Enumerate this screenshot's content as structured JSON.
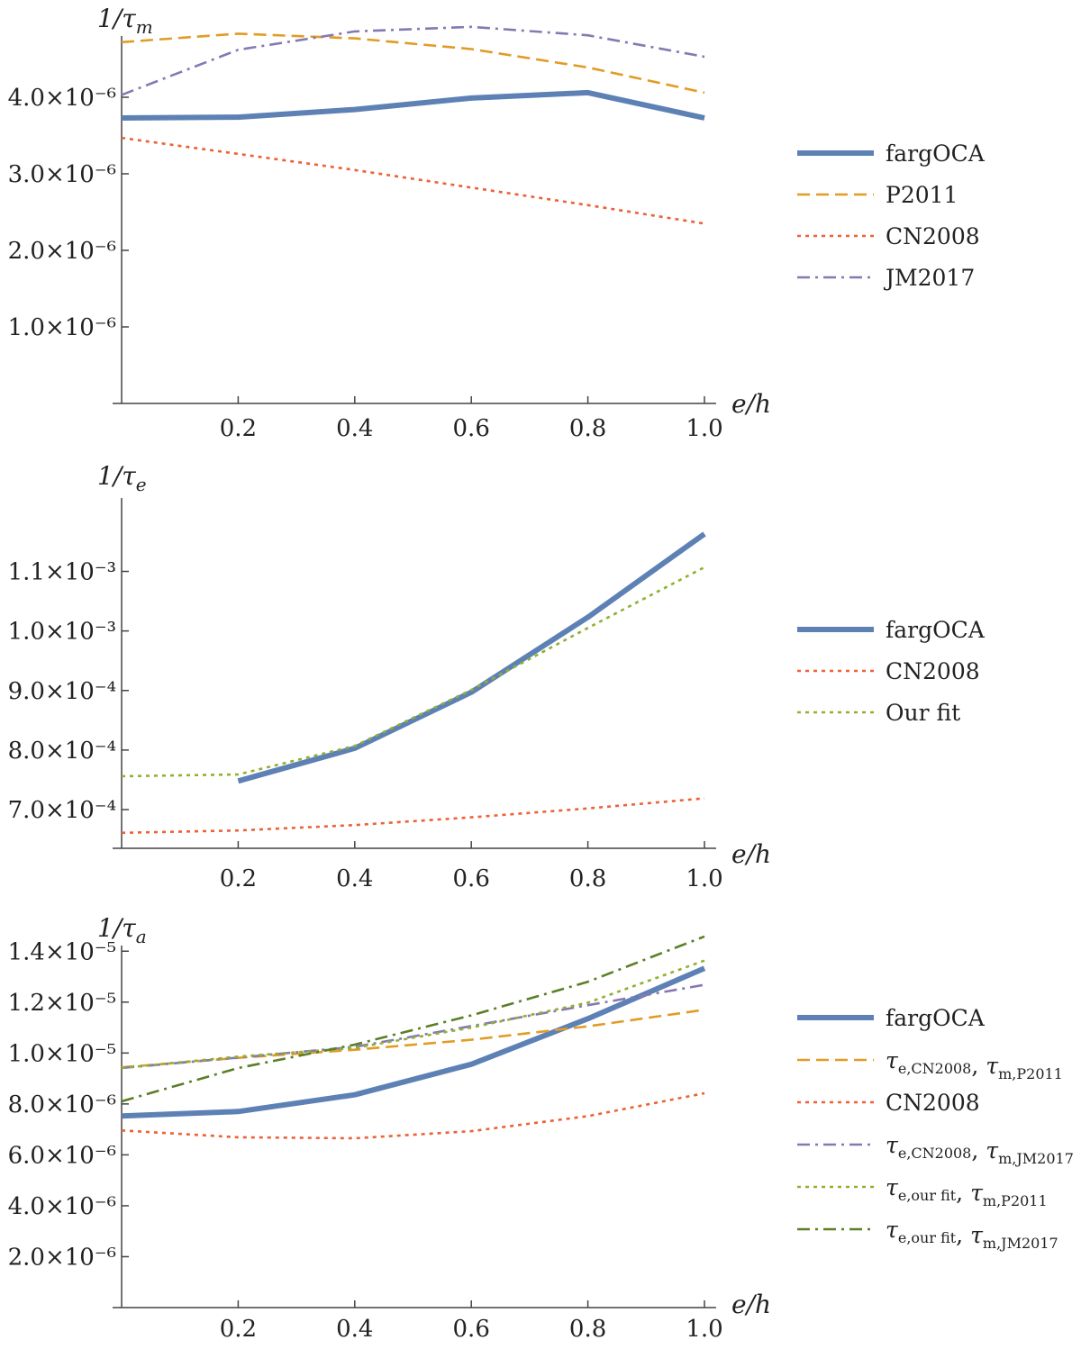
{
  "chart_data": [
    {
      "type": "line",
      "title": "",
      "ylabel": "1/τ_m",
      "xlabel": "e/h",
      "x": [
        0.0,
        0.2,
        0.4,
        0.6,
        0.8,
        1.0
      ],
      "xlim": [
        0.0,
        1.0
      ],
      "ylim": [
        0.0,
        5.2e-06
      ],
      "x_ticks": [
        "0.2",
        "0.4",
        "0.6",
        "0.8",
        "1.0"
      ],
      "y_ticks": [
        {
          "value": 1e-06,
          "label": "1.0×10⁻⁶"
        },
        {
          "value": 2e-06,
          "label": "2.0×10⁻⁶"
        },
        {
          "value": 3e-06,
          "label": "3.0×10⁻⁶"
        },
        {
          "value": 4e-06,
          "label": "4.0×10⁻⁶"
        }
      ],
      "legend_position": "right",
      "series": [
        {
          "name": "fargOCA",
          "style": "solid-thick",
          "color": "#5E81B5",
          "values": [
            3.73e-06,
            3.74e-06,
            3.84e-06,
            3.99e-06,
            4.06e-06,
            3.73e-06
          ]
        },
        {
          "name": "P2011",
          "style": "dashed",
          "color": "#E19C24",
          "values": [
            4.72e-06,
            4.83e-06,
            4.77e-06,
            4.63e-06,
            4.39e-06,
            4.06e-06
          ]
        },
        {
          "name": "CN2008",
          "style": "dotted",
          "color": "#EB6235",
          "values": [
            3.47e-06,
            3.26e-06,
            3.05e-06,
            2.82e-06,
            2.59e-06,
            2.35e-06
          ]
        },
        {
          "name": "JM2017",
          "style": "dashdot",
          "color": "#8778B3",
          "values": [
            4.03e-06,
            4.62e-06,
            4.86e-06,
            4.92e-06,
            4.81e-06,
            4.53e-06
          ]
        }
      ]
    },
    {
      "type": "line",
      "title": "",
      "ylabel": "1/τ_e",
      "xlabel": "e/h",
      "x": [
        0.0,
        0.2,
        0.4,
        0.6,
        0.8,
        1.0
      ],
      "xlim": [
        0.0,
        1.0
      ],
      "ylim": [
        0.000635,
        0.00119
      ],
      "x_ticks": [
        "0.2",
        "0.4",
        "0.6",
        "0.8",
        "1.0"
      ],
      "y_ticks": [
        {
          "value": 0.0007,
          "label": "7.0×10⁻⁴"
        },
        {
          "value": 0.0008,
          "label": "8.0×10⁻⁴"
        },
        {
          "value": 0.0009,
          "label": "9.0×10⁻⁴"
        },
        {
          "value": 0.001,
          "label": "1.0×10⁻³"
        },
        {
          "value": 0.0011,
          "label": "1.1×10⁻³"
        }
      ],
      "legend_position": "right",
      "series": [
        {
          "name": "fargOCA",
          "style": "solid-thick",
          "color": "#5E81B5",
          "values": [
            null,
            0.000748,
            0.000803,
            0.000897,
            0.001023,
            0.001163
          ]
        },
        {
          "name": "CN2008",
          "style": "dotted",
          "color": "#EB6235",
          "values": [
            0.000661,
            0.000665,
            0.000674,
            0.000687,
            0.000702,
            0.000719
          ]
        },
        {
          "name": "Our fit",
          "style": "dotted",
          "color": "#8FB131",
          "values": [
            0.000756,
            0.000759,
            0.000807,
            0.000901,
            0.001005,
            0.001107
          ]
        }
      ]
    },
    {
      "type": "line",
      "title": "",
      "ylabel": "1/τ_a",
      "xlabel": "e/h",
      "x": [
        0.0,
        0.2,
        0.4,
        0.6,
        0.8,
        1.0
      ],
      "xlim": [
        0.0,
        1.0
      ],
      "ylim": [
        0.0,
        1.5e-05
      ],
      "x_ticks": [
        "0.2",
        "0.4",
        "0.6",
        "0.8",
        "1.0"
      ],
      "y_ticks": [
        {
          "value": 2e-06,
          "label": "2.0×10⁻⁶"
        },
        {
          "value": 4e-06,
          "label": "4.0×10⁻⁶"
        },
        {
          "value": 6e-06,
          "label": "6.0×10⁻⁶"
        },
        {
          "value": 8e-06,
          "label": "8.0×10⁻⁶"
        },
        {
          "value": 1e-05,
          "label": "1.0×10⁻⁵"
        },
        {
          "value": 1.2e-05,
          "label": "1.2×10⁻⁵"
        },
        {
          "value": 1.4e-05,
          "label": "1.4×10⁻⁵"
        }
      ],
      "legend_position": "right",
      "series": [
        {
          "name": "fargOCA",
          "legend_parts": [
            [
              "fargOCA",
              ""
            ]
          ],
          "style": "solid-thick",
          "color": "#5E81B5",
          "values": [
            7.53e-06,
            7.7e-06,
            8.36e-06,
            9.56e-06,
            1.135e-05,
            1.333e-05
          ]
        },
        {
          "name": "τe,CN2008, τm,P2011",
          "legend_parts": [
            [
              "τ",
              "e,CN2008"
            ],
            [
              ", ",
              ""
            ],
            [
              "τ",
              "m,P2011"
            ]
          ],
          "style": "dashed",
          "color": "#E19C24",
          "values": [
            9.44e-06,
            9.81e-06,
            1.013e-05,
            1.052e-05,
            1.105e-05,
            1.17e-05
          ]
        },
        {
          "name": "CN2008",
          "legend_parts": [
            [
              "CN2008",
              ""
            ]
          ],
          "style": "dotted",
          "color": "#EB6235",
          "values": [
            6.96e-06,
            6.69e-06,
            6.65e-06,
            6.93e-06,
            7.52e-06,
            8.42e-06
          ]
        },
        {
          "name": "τe,CN2008, τm,JM2017",
          "legend_parts": [
            [
              "τ",
              "e,CN2008"
            ],
            [
              ", ",
              ""
            ],
            [
              "τ",
              "m,JM2017"
            ]
          ],
          "style": "dashdot",
          "color": "#8778B3",
          "values": [
            9.41e-06,
            9.82e-06,
            1.024e-05,
            1.106e-05,
            1.188e-05,
            1.268e-05
          ]
        },
        {
          "name": "τe,our fit, τm,P2011",
          "legend_parts": [
            [
              "τ",
              "e,our fit"
            ],
            [
              ", ",
              ""
            ],
            [
              "τ",
              "m,P2011"
            ]
          ],
          "style": "dotted",
          "color": "#8FB131",
          "values": [
            9.41e-06,
            9.86e-06,
            1.02e-05,
            1.1e-05,
            1.198e-05,
            1.363e-05
          ]
        },
        {
          "name": "τe,our fit, τm,JM2017",
          "legend_parts": [
            [
              "τ",
              "e,our fit"
            ],
            [
              ", ",
              ""
            ],
            [
              "τ",
              "m,JM2017"
            ]
          ],
          "style": "dashdot",
          "color": "#5B7F27",
          "values": [
            8.1e-06,
            9.41e-06,
            1.033e-05,
            1.148e-05,
            1.28e-05,
            1.458e-05
          ]
        }
      ]
    }
  ]
}
